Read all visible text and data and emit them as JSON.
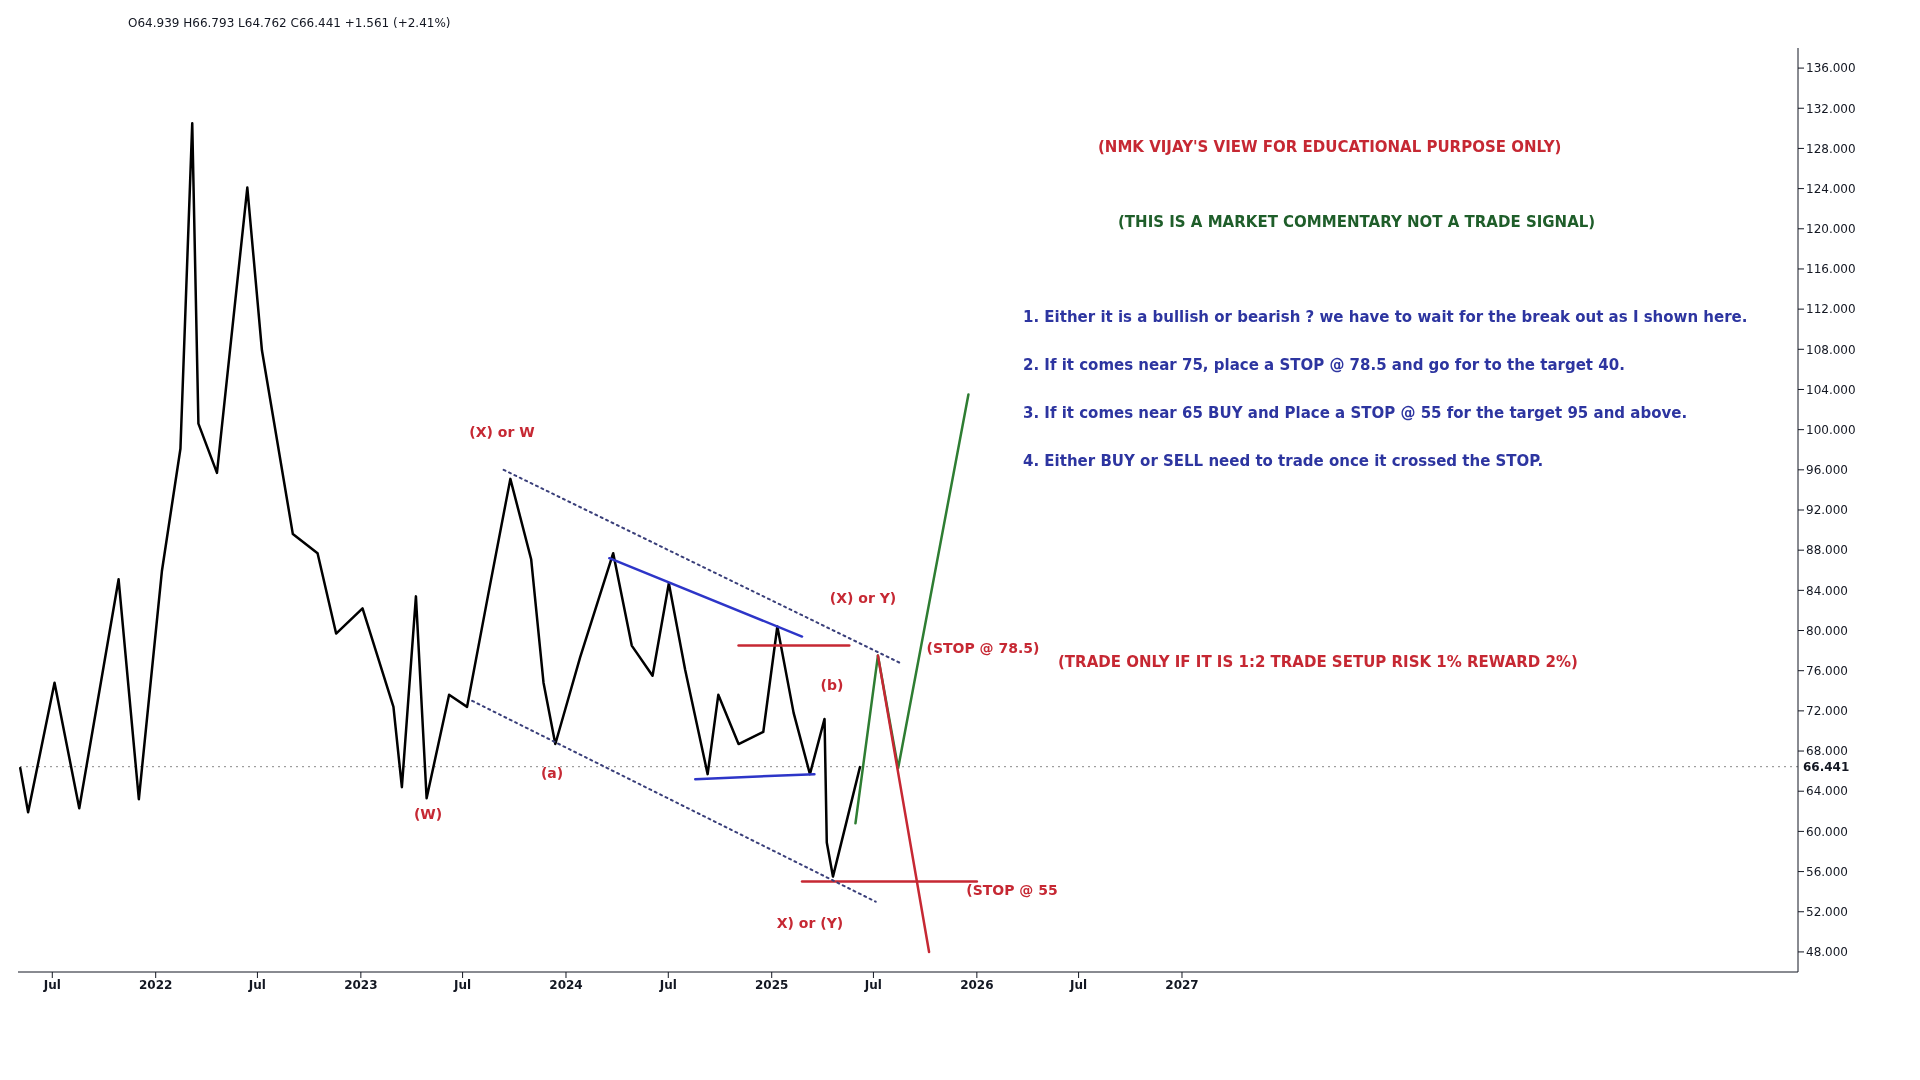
{
  "chart_data": {
    "type": "line",
    "subtitle": "O64.939 H66.793 L64.762 C66.441 +1.561 (+2.41%)",
    "xlim": [
      "2021-05-01",
      "2030-01-01"
    ],
    "xticks": [
      {
        "value": "2021-07-01",
        "label": "Jul"
      },
      {
        "value": "2022-01-01",
        "label": "2022"
      },
      {
        "value": "2022-07-01",
        "label": "Jul"
      },
      {
        "value": "2023-01-01",
        "label": "2023"
      },
      {
        "value": "2023-07-01",
        "label": "Jul"
      },
      {
        "value": "2024-01-01",
        "label": "2024"
      },
      {
        "value": "2024-07-01",
        "label": "Jul"
      },
      {
        "value": "2025-01-01",
        "label": "2025"
      },
      {
        "value": "2025-07-01",
        "label": "Jul"
      },
      {
        "value": "2026-01-01",
        "label": "2026"
      },
      {
        "value": "2026-07-01",
        "label": "Jul"
      },
      {
        "value": "2027-01-01",
        "label": "2027"
      }
    ],
    "ylim": [
      46,
      138
    ],
    "yticks": [
      {
        "value": 48,
        "label": "48.000"
      },
      {
        "value": 52,
        "label": "52.000"
      },
      {
        "value": 56,
        "label": "56.000"
      },
      {
        "value": 60,
        "label": "60.000"
      },
      {
        "value": 64,
        "label": "64.000"
      },
      {
        "value": 68,
        "label": "68.000"
      },
      {
        "value": 72,
        "label": "72.000"
      },
      {
        "value": 76,
        "label": "76.000"
      },
      {
        "value": 80,
        "label": "80.000"
      },
      {
        "value": 84,
        "label": "84.000"
      },
      {
        "value": 88,
        "label": "88.000"
      },
      {
        "value": 92,
        "label": "92.000"
      },
      {
        "value": 96,
        "label": "96.000"
      },
      {
        "value": 100,
        "label": "100.000"
      },
      {
        "value": 104,
        "label": "104.000"
      },
      {
        "value": 108,
        "label": "108.000"
      },
      {
        "value": 112,
        "label": "112.000"
      },
      {
        "value": 116,
        "label": "116.000"
      },
      {
        "value": 120,
        "label": "120.000"
      },
      {
        "value": 124,
        "label": "124.000"
      },
      {
        "value": 128,
        "label": "128.000"
      },
      {
        "value": 132,
        "label": "132.000"
      },
      {
        "value": 136,
        "label": "136.000"
      }
    ],
    "grid": false,
    "legend": false,
    "marker": "none",
    "series": [
      {
        "color": "#000000",
        "line_style": "solid",
        "x": [
          "2021-05-05",
          "2021-05-19",
          "2021-07-05",
          "2021-08-18",
          "2021-10-27",
          "2021-12-02",
          "2022-01-12",
          "2022-02-14",
          "2022-03-07",
          "2022-03-18",
          "2022-04-20",
          "2022-06-13",
          "2022-07-09",
          "2022-09-02",
          "2022-10-16",
          "2022-11-18",
          "2023-01-04",
          "2023-02-28",
          "2023-03-15",
          "2023-04-09",
          "2023-04-28",
          "2023-06-07",
          "2023-07-09",
          "2023-08-15",
          "2023-09-24",
          "2023-10-31",
          "2023-11-22",
          "2023-12-13",
          "2024-01-26",
          "2024-03-25",
          "2024-04-27",
          "2024-06-03",
          "2024-07-02",
          "2024-07-31",
          "2024-09-09",
          "2024-09-28",
          "2024-11-03",
          "2024-12-17",
          "2025-01-11",
          "2025-02-09",
          "2025-03-10",
          "2025-04-05",
          "2025-04-09",
          "2025-04-20",
          "2025-05-16",
          "2025-06-07"
        ],
        "values": [
          66.3,
          61.9,
          74.8,
          62.3,
          85.1,
          63.2,
          85.9,
          98.1,
          130.5,
          100.6,
          95.7,
          124.1,
          107.9,
          89.6,
          87.7,
          79.7,
          82.2,
          72.4,
          64.4,
          83.4,
          63.3,
          73.6,
          72.4,
          83.4,
          95.1,
          87.1,
          74.8,
          68.7,
          77.3,
          87.7,
          78.5,
          75.5,
          84.7,
          76.1,
          65.7,
          73.6,
          68.7,
          69.9,
          80.4,
          71.8,
          65.7,
          71.2,
          58.9,
          55.5,
          61.4,
          66.4
        ]
      },
      {
        "color": "#2e7d32",
        "line_style": "solid",
        "x": [
          "2025-05-30",
          "2025-07-09",
          "2025-08-14",
          "2025-12-17"
        ],
        "values": [
          60.8,
          77.5,
          66.3,
          103.5
        ]
      },
      {
        "color": "#c62833",
        "line_style": "solid",
        "x": [
          "2025-07-09",
          "2025-10-08"
        ],
        "values": [
          77.5,
          48
        ]
      },
      {
        "color": "#2d35c8",
        "line_style": "solid",
        "x": [
          "2024-03-18",
          "2025-02-24"
        ],
        "values": [
          87.2,
          79.4
        ]
      },
      {
        "color": "#2d35c8",
        "line_style": "solid",
        "x": [
          "2024-08-18",
          "2025-03-18"
        ],
        "values": [
          65.2,
          65.7
        ]
      },
      {
        "color": "#c62833",
        "line_style": "solid",
        "x": [
          "2024-11-03",
          "2025-05-19"
        ],
        "values": [
          78.5,
          78.5
        ]
      },
      {
        "color": "#c62833",
        "line_style": "solid",
        "x": [
          "2025-02-24",
          "2026-01-01"
        ],
        "values": [
          55,
          55
        ]
      },
      {
        "color": "#3a3f7a",
        "line_style": "dotted",
        "x": [
          "2023-09-12",
          "2025-08-20"
        ],
        "values": [
          96,
          76.7
        ]
      },
      {
        "color": "#3a3f7a",
        "line_style": "dotted",
        "x": [
          "2023-07-18",
          "2025-07-05"
        ],
        "values": [
          73,
          53
        ]
      }
    ],
    "ref_lines": [
      {
        "axis": "y",
        "value": 66.441,
        "label": "66.441",
        "color": "#888888",
        "line_style": "dotted"
      }
    ],
    "annotations": [
      "(NMK VIJAY'S VIEW FOR EDUCATIONAL PURPOSE ONLY)",
      "(THIS IS A MARKET COMMENTARY NOT A TRADE SIGNAL)",
      "1. Either it is a bullish or bearish ? we have to wait for the break out as I shown here.",
      "2. If it comes near 75, place a STOP @ 78.5 and go for to the target 40.",
      "3. If it comes near 65 BUY and Place a STOP @ 55 for the target 95 and above.",
      "4. Either BUY or SELL need to trade once it crossed the STOP.",
      "(TRADE ONLY IF IT IS 1:2 TRADE SETUP RISK 1% REWARD 2%)",
      "(X) or W",
      "(W)",
      "(a)",
      "(X) or Y)",
      "(b)",
      "X) or (Y)",
      "(STOP @ 78.5)",
      "(STOP @ 55"
    ]
  }
}
